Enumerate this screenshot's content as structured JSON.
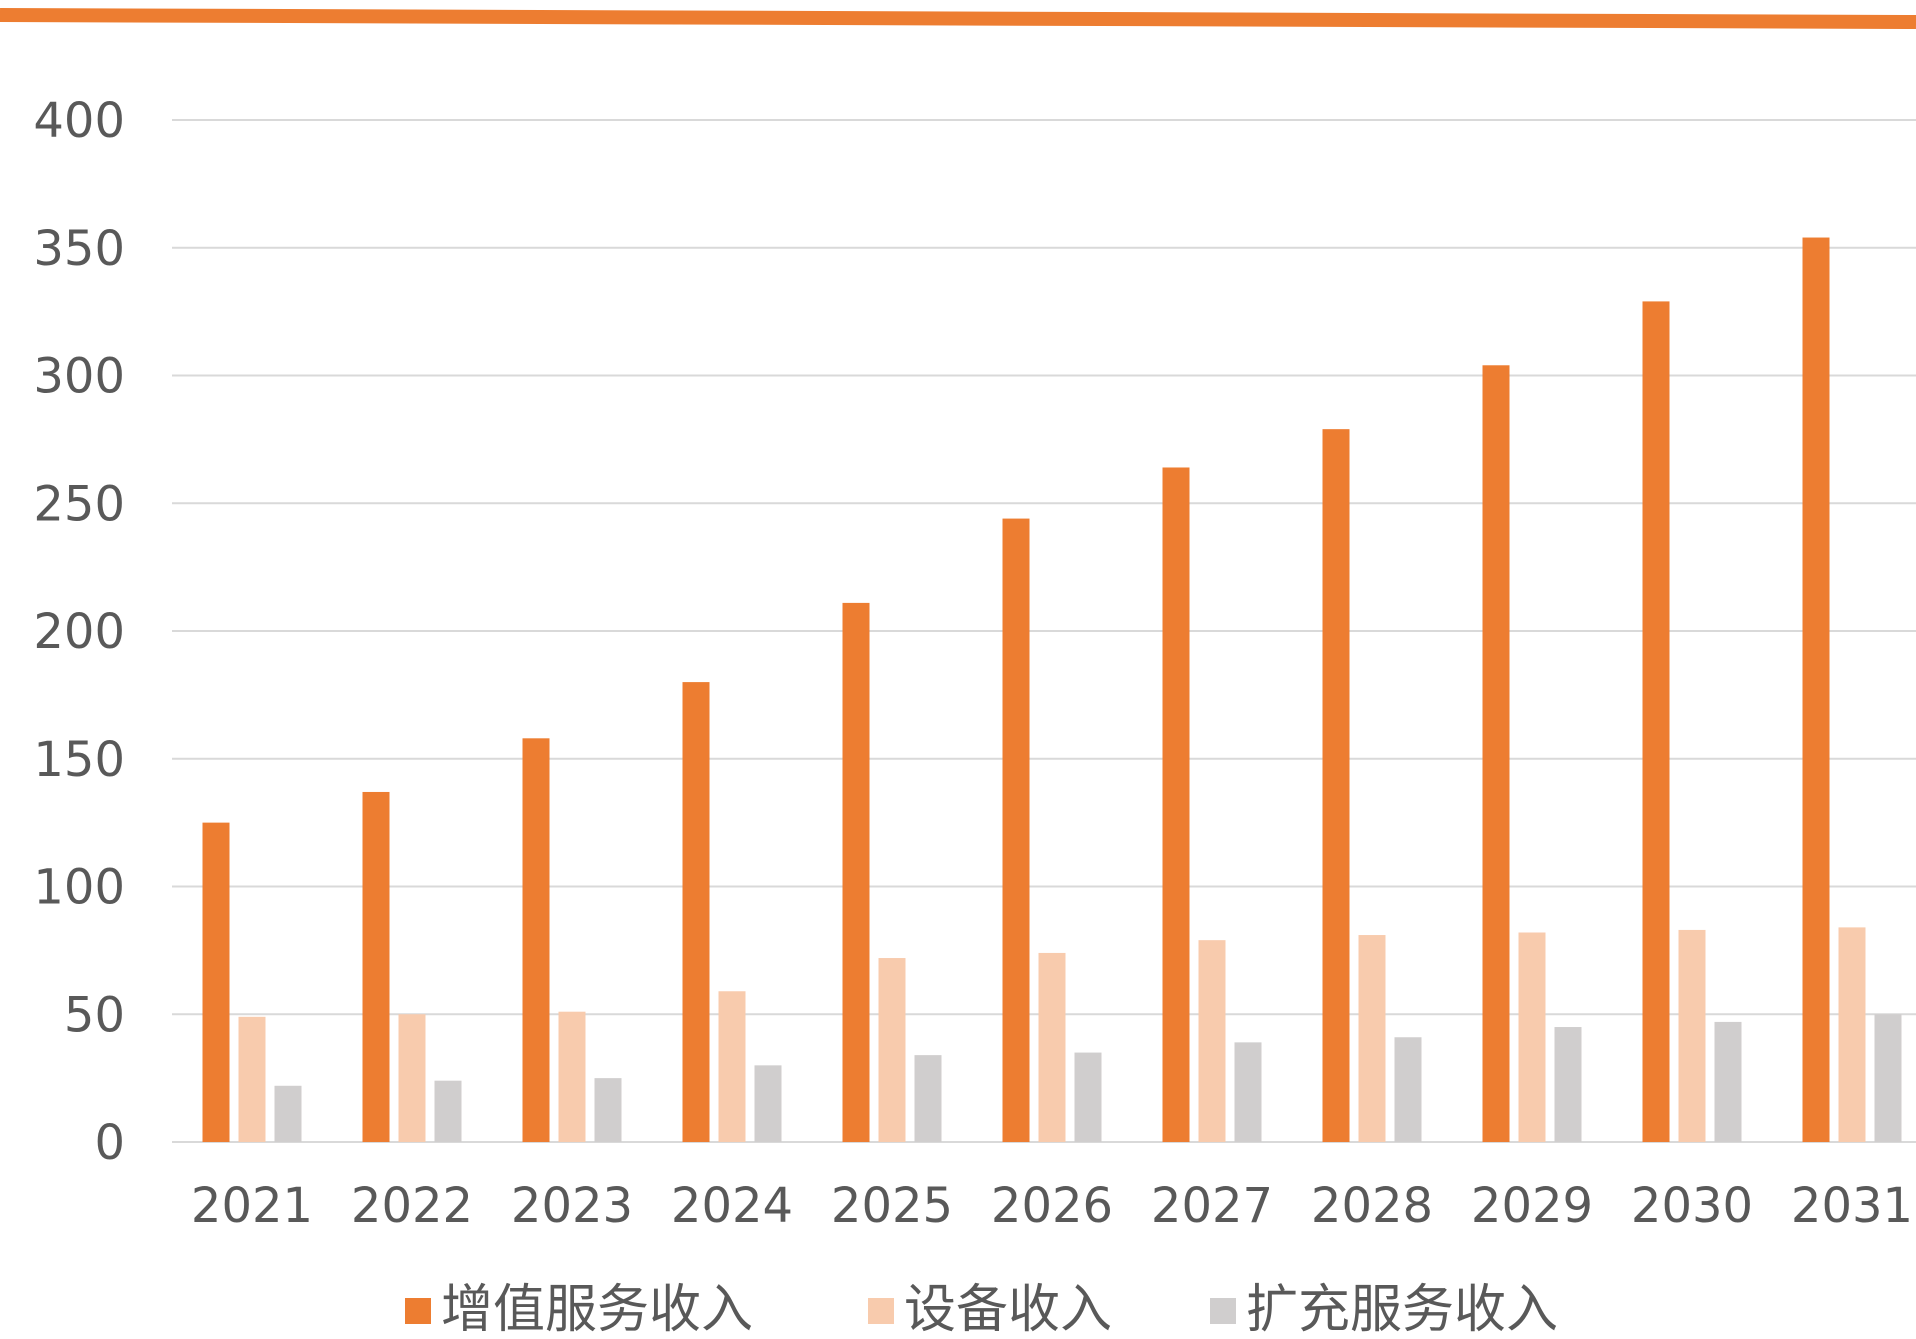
{
  "chart_data": {
    "type": "bar",
    "categories": [
      "2021",
      "2022",
      "2023",
      "2024",
      "2025",
      "2026",
      "2027",
      "2028",
      "2029",
      "2030",
      "2031"
    ],
    "series": [
      {
        "name": "增值服务收入",
        "color": "#ED7D31",
        "values": [
          125,
          137,
          158,
          180,
          211,
          244,
          264,
          279,
          304,
          329,
          354
        ]
      },
      {
        "name": "设备收入",
        "color": "#F8CBAD",
        "values": [
          49,
          50,
          51,
          59,
          72,
          74,
          79,
          81,
          82,
          83,
          84
        ]
      },
      {
        "name": "扩充服务收入",
        "color": "#D0CECE",
        "values": [
          22,
          24,
          25,
          30,
          34,
          35,
          39,
          41,
          45,
          47,
          50
        ]
      }
    ],
    "yticks": [
      0,
      50,
      100,
      150,
      200,
      250,
      300,
      350,
      400
    ],
    "ylim": [
      0,
      400
    ],
    "grid": true,
    "legend_position": "bottom",
    "top_rule_color": "#ED7D31",
    "gridline_color": "#D9D9D9"
  }
}
